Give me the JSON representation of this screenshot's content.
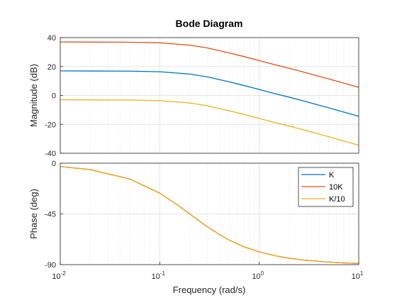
{
  "chart_data": {
    "type": "line",
    "title": "Bode Diagram",
    "xlabel": "Frequency  (rad/s)",
    "xscale": "log",
    "xlim": [
      0.01,
      10
    ],
    "x_ticks": [
      {
        "value": 0.01,
        "base": "10",
        "exp": "-2"
      },
      {
        "value": 0.1,
        "base": "10",
        "exp": "-1"
      },
      {
        "value": 1,
        "base": "10",
        "exp": "0"
      },
      {
        "value": 10,
        "base": "10",
        "exp": "1"
      }
    ],
    "grid": true,
    "legend": {
      "placement": "top-right",
      "panel": "phase"
    },
    "panels": [
      {
        "name": "magnitude",
        "ylabel": "Magnitude (dB)",
        "ylim": [
          -40,
          40
        ],
        "y_ticks": [
          "40",
          "20",
          "0",
          "-20",
          "-40"
        ],
        "series": [
          {
            "name": "K",
            "color": "#0072BD",
            "x": [
              0.01,
              0.02,
              0.05,
              0.1,
              0.2,
              0.3,
              0.5,
              0.7,
              1,
              1.5,
              2,
              3,
              5,
              7,
              10
            ],
            "y": [
              17,
              16.9,
              16.8,
              16.4,
              14.8,
              12.9,
              9.4,
              6.9,
              4.1,
              0.9,
              -1.2,
              -4.4,
              -8.6,
              -11.4,
              -14.4
            ]
          },
          {
            "name": "10K",
            "color": "#D95319",
            "x": [
              0.01,
              0.02,
              0.05,
              0.1,
              0.2,
              0.3,
              0.5,
              0.7,
              1,
              1.5,
              2,
              3,
              5,
              7,
              10
            ],
            "y": [
              37,
              36.9,
              36.8,
              36.4,
              34.8,
              32.9,
              29.4,
              26.9,
              24.1,
              20.9,
              18.8,
              15.6,
              11.4,
              8.6,
              5.6
            ]
          },
          {
            "name": "K/10",
            "color": "#EDB120",
            "x": [
              0.01,
              0.02,
              0.05,
              0.1,
              0.2,
              0.3,
              0.5,
              0.7,
              1,
              1.5,
              2,
              3,
              5,
              7,
              10
            ],
            "y": [
              -3,
              -3.1,
              -3.2,
              -3.6,
              -5.2,
              -7.1,
              -10.6,
              -13.1,
              -15.9,
              -19.1,
              -21.2,
              -24.4,
              -28.6,
              -31.4,
              -34.4
            ]
          }
        ]
      },
      {
        "name": "phase",
        "ylabel": "Phase (deg)",
        "ylim": [
          -90,
          0
        ],
        "y_ticks": [
          "0",
          "-45",
          "-90"
        ],
        "series": [
          {
            "name": "K",
            "color": "#0072BD",
            "x": [
              0.01,
              0.02,
              0.05,
              0.1,
              0.15,
              0.2,
              0.3,
              0.4,
              0.5,
              0.7,
              1,
              1.5,
              2,
              3,
              5,
              7,
              10
            ],
            "y": [
              -2.9,
              -5.7,
              -14.0,
              -26.6,
              -36.9,
              -45,
              -56.3,
              -63.4,
              -68.2,
              -74.1,
              -78.7,
              -82.4,
              -84.3,
              -86.2,
              -87.7,
              -88.4,
              -88.9
            ]
          },
          {
            "name": "10K",
            "color": "#D95319",
            "x": [
              0.01,
              0.02,
              0.05,
              0.1,
              0.15,
              0.2,
              0.3,
              0.4,
              0.5,
              0.7,
              1,
              1.5,
              2,
              3,
              5,
              7,
              10
            ],
            "y": [
              -2.9,
              -5.7,
              -14.0,
              -26.6,
              -36.9,
              -45,
              -56.3,
              -63.4,
              -68.2,
              -74.1,
              -78.7,
              -82.4,
              -84.3,
              -86.2,
              -87.7,
              -88.4,
              -88.9
            ]
          },
          {
            "name": "K/10",
            "color": "#EDB120",
            "x": [
              0.01,
              0.02,
              0.05,
              0.1,
              0.15,
              0.2,
              0.3,
              0.4,
              0.5,
              0.7,
              1,
              1.5,
              2,
              3,
              5,
              7,
              10
            ],
            "y": [
              -2.9,
              -5.7,
              -14.0,
              -26.6,
              -36.9,
              -45,
              -56.3,
              -63.4,
              -68.2,
              -74.1,
              -78.7,
              -82.4,
              -84.3,
              -86.2,
              -87.7,
              -88.4,
              -88.9
            ]
          }
        ]
      }
    ]
  }
}
